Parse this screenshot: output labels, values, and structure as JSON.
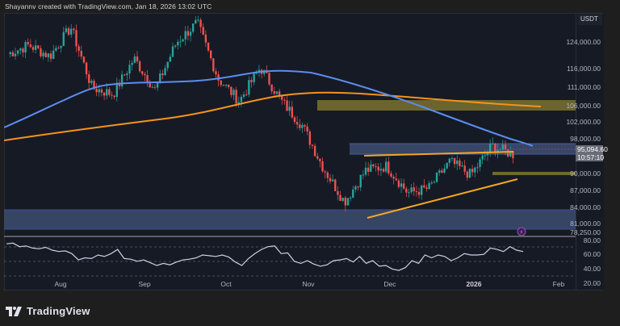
{
  "header": {
    "credit": "Shayannv created with TradingView.com, Jan 18, 2026 13:02 UTC"
  },
  "price_axis": {
    "currency": "USDT",
    "labels": [
      "124,000.00",
      "116,000.00",
      "111,000.00",
      "106,000.00",
      "102,000.00",
      "98,000.00",
      "90,000.00",
      "87,000.00",
      "84,000.00",
      "81,000.00",
      "78,250.00"
    ],
    "current_price": "95,094.60",
    "countdown": "10:57:10"
  },
  "rsi_axis": {
    "labels": [
      "80.00",
      "60.00",
      "40.00",
      "20.00"
    ]
  },
  "time_axis": {
    "labels": [
      "Aug",
      "Sep",
      "Oct",
      "Nov",
      "Dec",
      "2026",
      "Feb"
    ]
  },
  "branding": {
    "logo_text": "TradingView"
  },
  "colors": {
    "background": "#161a25",
    "bull": "#26a69a",
    "bear": "#ef5350",
    "ma_blue": "#5b8def",
    "ma_orange": "#f7931a",
    "supply_zone": "#7a7230",
    "demand_zone": "#3a4a6b",
    "trendline": "#f5a623",
    "rsi_line": "#c9d1e3"
  },
  "chart_data": [
    {
      "type": "candlestick",
      "title": "BTC/USDT Daily",
      "symbol_quote": "USDT",
      "x_ticks": [
        "Aug",
        "Sep",
        "Oct",
        "Nov",
        "Dec",
        "2026",
        "Feb"
      ],
      "ylim": [
        77000,
        127000
      ],
      "y_ticks": [
        124000,
        116000,
        111000,
        106000,
        102000,
        98000,
        90000,
        87000,
        84000,
        81000,
        78250
      ],
      "last_price": 95094.6,
      "key_path": [
        {
          "x": "Jul",
          "close": 117500
        },
        {
          "x": "mid-Jul",
          "close": 119500
        },
        {
          "x": "Aug",
          "close": 117000
        },
        {
          "x": "mid-Aug",
          "close": 123500
        },
        {
          "x": "late-Aug",
          "close": 110000
        },
        {
          "x": "Sep",
          "close": 108500
        },
        {
          "x": "mid-Sep",
          "close": 116500
        },
        {
          "x": "late-Sep",
          "close": 109500
        },
        {
          "x": "Oct",
          "close": 120000
        },
        {
          "x": "early-Oct",
          "close": 124500
        },
        {
          "x": "Oct 10",
          "close": 112000
        },
        {
          "x": "mid-Oct",
          "close": 107000
        },
        {
          "x": "late-Oct",
          "close": 114500
        },
        {
          "x": "Nov",
          "close": 107000
        },
        {
          "x": "early-Nov",
          "close": 101500
        },
        {
          "x": "mid-Nov",
          "close": 92000
        },
        {
          "x": "Nov 21",
          "close": 84500
        },
        {
          "x": "late-Nov",
          "close": 91500
        },
        {
          "x": "Dec",
          "close": 92500
        },
        {
          "x": "mid-Dec",
          "close": 86500
        },
        {
          "x": "late-Dec",
          "close": 87500
        },
        {
          "x": "2026",
          "close": 93500
        },
        {
          "x": "early-Jan",
          "close": 90500
        },
        {
          "x": "mid-Jan",
          "close": 97000
        },
        {
          "x": "Jan 18",
          "close": 95094.6
        }
      ],
      "overlays": {
        "ma_100": {
          "color": "blue",
          "start": 98500,
          "peak": 117000,
          "end": 96500
        },
        "ma_200": {
          "color": "orange",
          "start": 96000,
          "peak": 108500,
          "end": 105500
        },
        "supply_zone": {
          "low": 104000,
          "high": 107200
        },
        "resistance_zone": {
          "low": 94200,
          "high": 96500
        },
        "small_support_zone": {
          "low": 89500,
          "high": 90200
        },
        "demand_zone": {
          "low": 78500,
          "high": 82200
        },
        "ascending_triangle": {
          "upper_line": {
            "from": 93500,
            "to": 95000
          },
          "lower_line": {
            "from": 80500,
            "to": 88700
          }
        }
      }
    },
    {
      "type": "line",
      "title": "RSI",
      "ylim": [
        15,
        82
      ],
      "y_ticks": [
        80,
        60,
        40,
        20
      ],
      "dashed_levels": [
        70,
        50,
        30
      ],
      "values": [
        76,
        77,
        72,
        73,
        70,
        69,
        71,
        67,
        65,
        66,
        62,
        53,
        56,
        55,
        60,
        58,
        62,
        68,
        55,
        54,
        51,
        53,
        49,
        45,
        48,
        46,
        50,
        53,
        54,
        56,
        60,
        59,
        58,
        60,
        57,
        50,
        45,
        55,
        62,
        68,
        72,
        73,
        62,
        63,
        51,
        48,
        52,
        47,
        44,
        46,
        52,
        53,
        55,
        50,
        58,
        48,
        52,
        44,
        45,
        40,
        38,
        42,
        52,
        48,
        60,
        56,
        60,
        58,
        52,
        56,
        62,
        60,
        60,
        61,
        70,
        68,
        65,
        72,
        67,
        65
      ]
    }
  ]
}
